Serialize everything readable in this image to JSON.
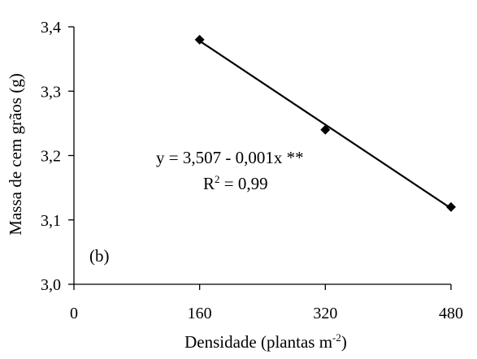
{
  "chart_data": {
    "type": "scatter",
    "xlabel": "Densidade (plantas m",
    "xlabel_exponent": "-2",
    "xlabel_suffix": ")",
    "ylabel": "Massa de cem grãos (g)",
    "xlim": [
      0,
      480
    ],
    "ylim": [
      3.0,
      3.4
    ],
    "x_ticks": [
      0,
      160,
      320,
      480
    ],
    "x_tick_labels": [
      "0",
      "160",
      "320",
      "480"
    ],
    "y_ticks": [
      3.0,
      3.1,
      3.2,
      3.3,
      3.4
    ],
    "y_tick_labels": [
      "3,0",
      "3,1",
      "3,2",
      "3,3",
      "3,4"
    ],
    "grid": false,
    "series": [
      {
        "x": [
          160,
          320,
          480
        ],
        "y": [
          3.38,
          3.24,
          3.12
        ],
        "marker": "diamond",
        "color": "#000000"
      }
    ],
    "trendline": {
      "x": [
        160,
        480
      ],
      "y": [
        3.378,
        3.118
      ],
      "color": "#000000"
    },
    "annotations": {
      "equation": "y = 3,507 - 0,001x **",
      "r2_prefix": "R",
      "r2_exponent": "2",
      "r2_value": " = 0,99",
      "panel_label": "(b)"
    }
  }
}
